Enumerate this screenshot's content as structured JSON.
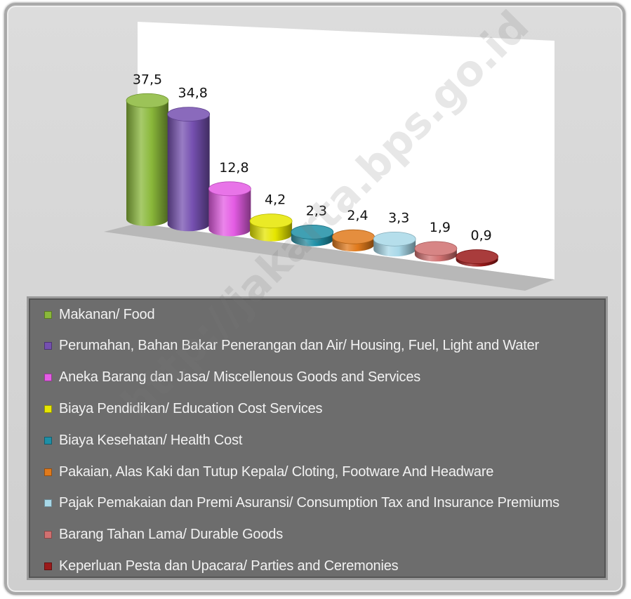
{
  "chart_data": {
    "type": "bar",
    "categories": [
      "Makanan/ Food",
      "Perumahan, Bahan Bakar Penerangan dan Air/ Housing, Fuel, Light  and Water",
      "Aneka Barang dan Jasa/ Miscellenous Goods and Services",
      "Biaya Pendidikan/ Education Cost Services",
      "Biaya Kesehatan/ Health Cost",
      "Pakaian, Alas Kaki dan Tutup Kepala/ Cloting, Footware And Headware",
      "Pajak Pemakaian dan Premi Asuransi/ Consumption Tax and Insurance Premiums",
      "Barang Tahan Lama/ Durable Goods",
      "Keperluan Pesta dan Upacara/ Parties and Ceremonies"
    ],
    "values": [
      37.5,
      34.8,
      12.8,
      4.2,
      2.3,
      2.4,
      3.3,
      1.9,
      0.9
    ],
    "value_labels": [
      "37,5",
      "34,8",
      "12,8",
      "4,2",
      "2,3",
      "2,4",
      "3,3",
      "1,9",
      "0,9"
    ],
    "colors": [
      "#8ab83a",
      "#7550b0",
      "#e45ce4",
      "#e6e600",
      "#1e8fa6",
      "#e07a1c",
      "#a8d8e8",
      "#d07070",
      "#9a1a1a"
    ],
    "style": "3d-cylinder",
    "legend_position": "bottom",
    "grid": false
  },
  "watermark": "http://jakarta.bps.go.id"
}
